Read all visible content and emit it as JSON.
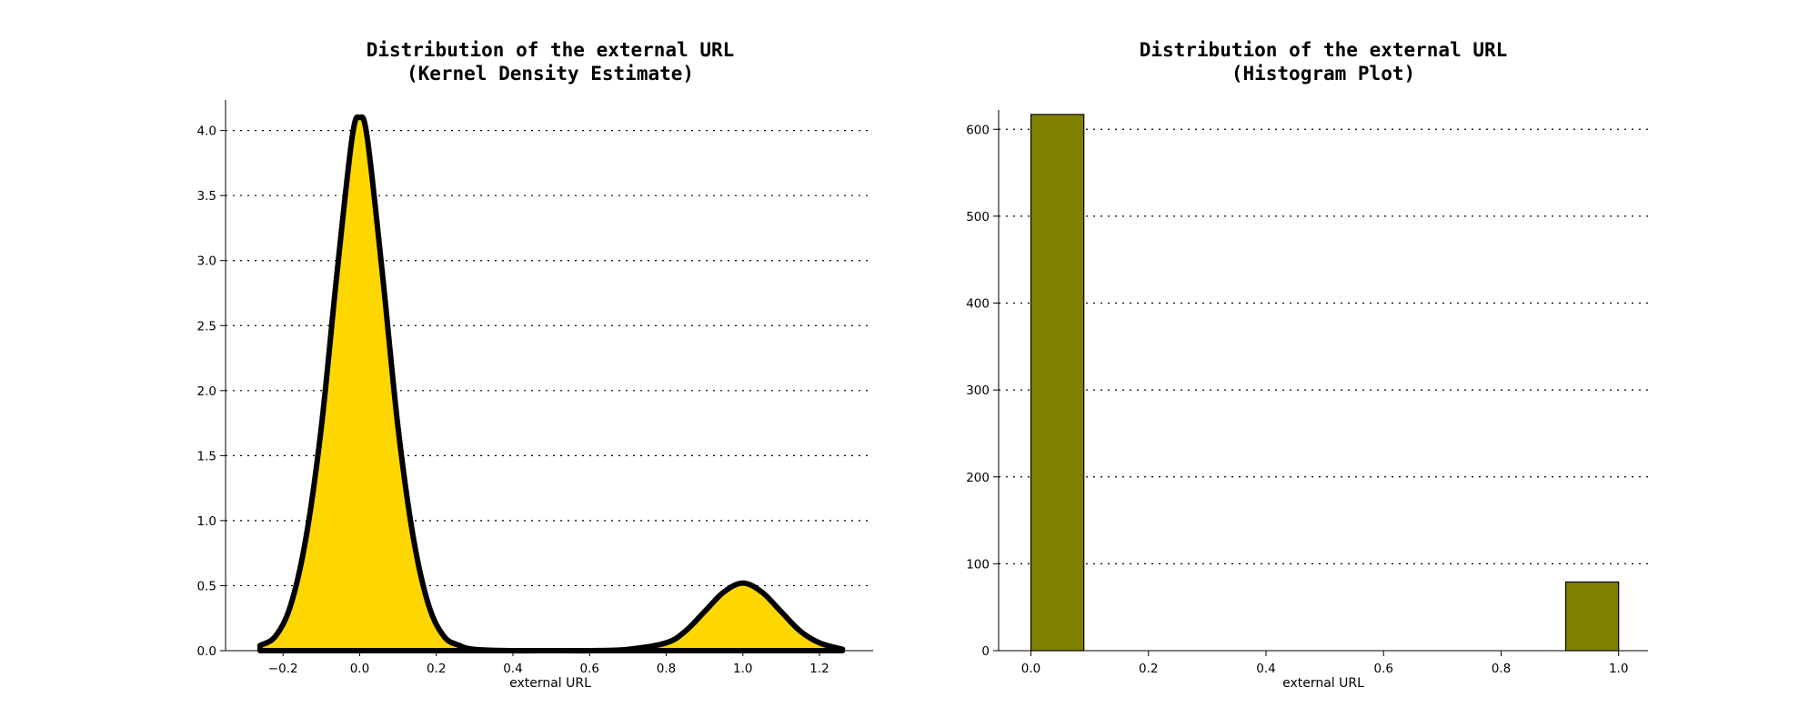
{
  "chart_data": [
    {
      "type": "area",
      "title_lines": [
        "Distribution of the external URL",
        "(Kernel Density Estimate)"
      ],
      "xlabel": "external URL",
      "ylabel": "",
      "xlim": [
        -0.35,
        1.34
      ],
      "ylim": [
        0,
        4.2
      ],
      "x_ticks": [
        -0.2,
        0.0,
        0.2,
        0.4,
        0.6,
        0.8,
        1.0,
        1.2
      ],
      "x_tick_labels": [
        "−0.2",
        "0.0",
        "0.2",
        "0.4",
        "0.6",
        "0.8",
        "1.0",
        "1.2"
      ],
      "y_ticks": [
        0.0,
        0.5,
        1.0,
        1.5,
        2.0,
        2.5,
        3.0,
        3.5,
        4.0
      ],
      "y_tick_labels": [
        "0.0",
        "0.5",
        "1.0",
        "1.5",
        "2.0",
        "2.5",
        "3.0",
        "3.5",
        "4.0"
      ],
      "grid": "horizontal dotted",
      "fill_color": "#FFD700",
      "line_color": "#000000",
      "series": [
        {
          "x": [
            -0.26,
            -0.22,
            -0.18,
            -0.14,
            -0.1,
            -0.06,
            -0.02,
            0.0,
            0.02,
            0.06,
            0.1,
            0.14,
            0.18,
            0.22,
            0.26,
            0.3,
            0.4,
            0.5,
            0.6,
            0.7,
            0.8,
            0.85,
            0.9,
            0.95,
            1.0,
            1.05,
            1.1,
            1.15,
            1.2,
            1.26
          ],
          "y": [
            0.04,
            0.11,
            0.35,
            0.87,
            1.72,
            2.88,
            3.94,
            4.1,
            3.94,
            2.88,
            1.72,
            0.87,
            0.35,
            0.11,
            0.04,
            0.01,
            0.0,
            0.0,
            0.0,
            0.01,
            0.06,
            0.15,
            0.3,
            0.45,
            0.52,
            0.45,
            0.3,
            0.15,
            0.06,
            0.01
          ]
        }
      ]
    },
    {
      "type": "bar",
      "title_lines": [
        "Distribution of the external URL",
        "(Histogram Plot)"
      ],
      "xlabel": "external URL",
      "ylabel": "",
      "xlim": [
        -0.055,
        1.05
      ],
      "ylim": [
        0,
        617
      ],
      "x_ticks": [
        0.0,
        0.2,
        0.4,
        0.6,
        0.8,
        1.0
      ],
      "x_tick_labels": [
        "0.0",
        "0.2",
        "0.4",
        "0.6",
        "0.8",
        "1.0"
      ],
      "y_ticks": [
        0,
        100,
        200,
        300,
        400,
        500,
        600
      ],
      "y_tick_labels": [
        "0",
        "100",
        "200",
        "300",
        "400",
        "500",
        "600"
      ],
      "grid": "horizontal dotted",
      "bar_color": "#808000",
      "bins": [
        {
          "x0": 0.0,
          "x1": 0.09,
          "count": 617
        },
        {
          "x0": 0.91,
          "x1": 1.0,
          "count": 79
        }
      ]
    }
  ]
}
